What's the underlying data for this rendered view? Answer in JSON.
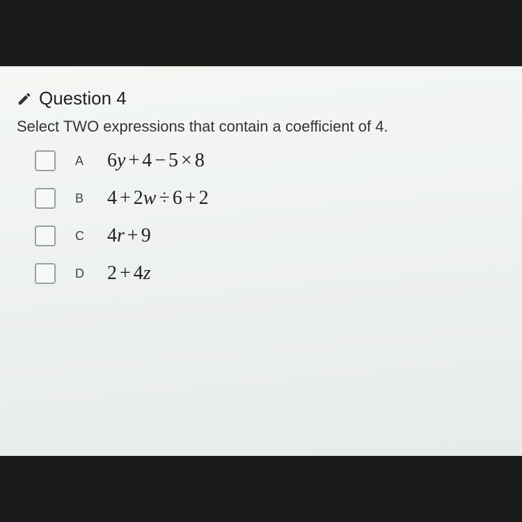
{
  "question": {
    "number_label": "Question 4",
    "prompt": "Select TWO expressions that contain a coefficient of 4.",
    "options": [
      {
        "letter": "A",
        "expr_html": "6<span class='var'>y</span><span class='op'>+</span>4<span class='op'>−</span>5<span class='op'>×</span>8"
      },
      {
        "letter": "B",
        "expr_html": "4<span class='op'>+</span>2<span class='var'>w</span><span class='op'>÷</span>6<span class='op'>+</span>2"
      },
      {
        "letter": "C",
        "expr_html": "4<span class='var'>r</span><span class='op'>+</span>9"
      },
      {
        "letter": "D",
        "expr_html": "2<span class='op'>+</span>4<span class='var'>z</span>"
      }
    ]
  },
  "colors": {
    "paper_bg": "#eef1ed",
    "text": "#222",
    "checkbox_border": "#9aa09a"
  }
}
